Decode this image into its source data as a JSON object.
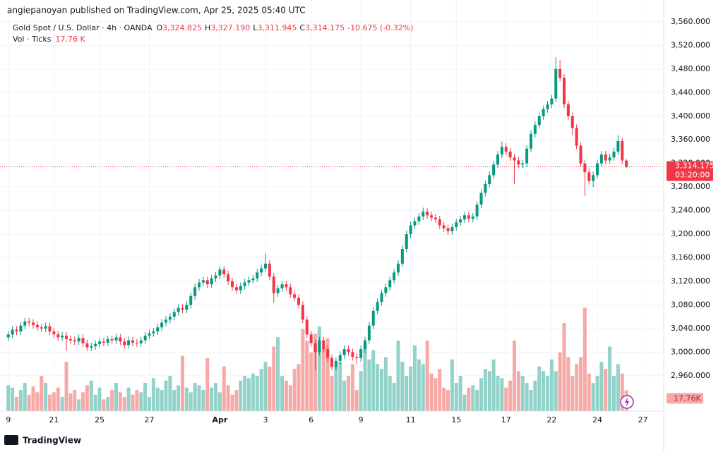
{
  "header": {
    "publisher": "angiepanoyan published on TradingView.com, Apr 25, 2025 05:40 UTC"
  },
  "chart_data": {
    "type": "candlestick",
    "title": "Gold Spot / U.S. Dollar · 4h · OANDA",
    "ohlc_legend": [
      {
        "key": "O",
        "value": "3,324.825"
      },
      {
        "key": "H",
        "value": "3,327.190"
      },
      {
        "key": "L",
        "value": "3,311.945"
      },
      {
        "key": "C",
        "value": "3,314.175"
      }
    ],
    "change": "-10.675 (-0.32%)",
    "volume_title": "Vol · Ticks",
    "volume_legend": "17.76 K",
    "open": [
      3025,
      3030,
      3038,
      3035,
      3045,
      3052,
      3050,
      3046,
      3042,
      3040,
      3044,
      3035,
      3030,
      3025,
      3028,
      3022,
      3020,
      3018,
      3024,
      3015,
      3008,
      3010,
      3014,
      3018,
      3016,
      3022,
      3020,
      3025,
      3018,
      3012,
      3020,
      3016,
      3015,
      3020,
      3028,
      3032,
      3035,
      3042,
      3050,
      3055,
      3060,
      3068,
      3075,
      3072,
      3080,
      3095,
      3110,
      3118,
      3122,
      3115,
      3125,
      3130,
      3140,
      3132,
      3120,
      3110,
      3105,
      3112,
      3118,
      3122,
      3125,
      3135,
      3142,
      3150,
      3128,
      3100,
      3108,
      3115,
      3110,
      3098,
      3092,
      3080,
      3055,
      3030,
      3015,
      3000,
      3020,
      3005,
      2990,
      2975,
      2985,
      2995,
      3005,
      3000,
      2992,
      2990,
      3005,
      3020,
      3045,
      3070,
      3085,
      3100,
      3110,
      3122,
      3135,
      3150,
      3175,
      3200,
      3215,
      3222,
      3230,
      3238,
      3232,
      3228,
      3225,
      3215,
      3210,
      3205,
      3212,
      3220,
      3225,
      3232,
      3226,
      3230,
      3250,
      3270,
      3285,
      3300,
      3318,
      3335,
      3348,
      3340,
      3330,
      3325,
      3318,
      3320,
      3345,
      3370,
      3385,
      3400,
      3412,
      3420,
      3430,
      3480,
      3465,
      3420,
      3400,
      3380,
      3350,
      3320,
      3305,
      3290,
      3300,
      3320,
      3335,
      3325,
      3330,
      3340,
      3358,
      3324.825
    ],
    "high": [
      3036,
      3044,
      3044,
      3051,
      3058,
      3058,
      3056,
      3052,
      3048,
      3050,
      3050,
      3041,
      3036,
      3034,
      3034,
      3028,
      3026,
      3030,
      3030,
      3021,
      3016,
      3020,
      3024,
      3024,
      3028,
      3028,
      3031,
      3031,
      3024,
      3026,
      3026,
      3022,
      3026,
      3034,
      3038,
      3041,
      3048,
      3056,
      3061,
      3066,
      3074,
      3081,
      3081,
      3086,
      3101,
      3116,
      3124,
      3128,
      3128,
      3131,
      3136,
      3146,
      3146,
      3138,
      3126,
      3116,
      3118,
      3124,
      3128,
      3131,
      3141,
      3148,
      3168,
      3156,
      3134,
      3114,
      3121,
      3121,
      3116,
      3104,
      3098,
      3086,
      3061,
      3036,
      3021,
      3026,
      3026,
      3011,
      2996,
      2991,
      3001,
      3011,
      3011,
      3006,
      2998,
      3011,
      3026,
      3051,
      3076,
      3091,
      3106,
      3116,
      3128,
      3141,
      3156,
      3181,
      3206,
      3221,
      3228,
      3236,
      3245,
      3244,
      3238,
      3234,
      3231,
      3221,
      3216,
      3218,
      3226,
      3231,
      3238,
      3238,
      3236,
      3256,
      3276,
      3291,
      3306,
      3324,
      3341,
      3357,
      3354,
      3346,
      3336,
      3331,
      3326,
      3351,
      3376,
      3391,
      3406,
      3418,
      3426,
      3436,
      3500,
      3495,
      3471,
      3426,
      3406,
      3386,
      3356,
      3326,
      3311,
      3306,
      3326,
      3341,
      3341,
      3336,
      3346,
      3368,
      3364,
      3327.19
    ],
    "low": [
      3019,
      3024,
      3029,
      3029,
      3039,
      3044,
      3040,
      3036,
      3034,
      3034,
      3029,
      3024,
      3019,
      3019,
      3002,
      3014,
      3012,
      3012,
      3009,
      3002,
      3002,
      3004,
      3008,
      3010,
      3010,
      3014,
      3014,
      3012,
      3006,
      3006,
      3010,
      3009,
      3009,
      3014,
      3022,
      3026,
      3029,
      3036,
      3044,
      3049,
      3054,
      3062,
      3066,
      3066,
      3074,
      3089,
      3104,
      3112,
      3109,
      3109,
      3119,
      3124,
      3126,
      3114,
      3104,
      3099,
      3099,
      3106,
      3112,
      3116,
      3119,
      3129,
      3136,
      3122,
      3084,
      3094,
      3102,
      3104,
      3092,
      3086,
      3074,
      3049,
      3024,
      3009,
      2970,
      2994,
      2999,
      2984,
      2969,
      2969,
      2979,
      2989,
      2994,
      2986,
      2980,
      2984,
      2999,
      3014,
      3039,
      3064,
      3079,
      3094,
      3104,
      3116,
      3129,
      3144,
      3169,
      3194,
      3209,
      3216,
      3224,
      3226,
      3222,
      3219,
      3209,
      3204,
      3199,
      3199,
      3206,
      3214,
      3219,
      3220,
      3220,
      3224,
      3244,
      3264,
      3279,
      3294,
      3312,
      3329,
      3334,
      3324,
      3285,
      3312,
      3312,
      3314,
      3339,
      3364,
      3379,
      3394,
      3406,
      3414,
      3424,
      3459,
      3414,
      3394,
      3368,
      3344,
      3314,
      3265,
      3284,
      3280,
      3294,
      3314,
      3319,
      3319,
      3324,
      3334,
      3319,
      3311.945
    ],
    "close": [
      3030,
      3038,
      3035,
      3045,
      3052,
      3050,
      3046,
      3042,
      3040,
      3044,
      3035,
      3030,
      3025,
      3028,
      3022,
      3020,
      3018,
      3024,
      3015,
      3008,
      3010,
      3014,
      3018,
      3016,
      3022,
      3020,
      3025,
      3018,
      3012,
      3020,
      3016,
      3015,
      3020,
      3028,
      3032,
      3035,
      3042,
      3050,
      3055,
      3060,
      3068,
      3075,
      3072,
      3080,
      3095,
      3110,
      3118,
      3122,
      3115,
      3125,
      3130,
      3140,
      3132,
      3120,
      3110,
      3105,
      3112,
      3118,
      3122,
      3125,
      3135,
      3142,
      3150,
      3128,
      3100,
      3108,
      3115,
      3110,
      3098,
      3092,
      3080,
      3055,
      3030,
      3015,
      3000,
      3020,
      3005,
      2990,
      2975,
      2985,
      2995,
      3005,
      3000,
      2992,
      2990,
      3005,
      3020,
      3045,
      3070,
      3085,
      3100,
      3110,
      3122,
      3135,
      3150,
      3175,
      3200,
      3215,
      3222,
      3230,
      3238,
      3232,
      3228,
      3225,
      3215,
      3210,
      3205,
      3212,
      3220,
      3225,
      3232,
      3226,
      3230,
      3250,
      3270,
      3285,
      3300,
      3318,
      3335,
      3348,
      3340,
      3330,
      3325,
      3318,
      3320,
      3345,
      3370,
      3385,
      3400,
      3412,
      3420,
      3430,
      3480,
      3465,
      3420,
      3400,
      3380,
      3350,
      3320,
      3305,
      3290,
      3300,
      3320,
      3335,
      3325,
      3330,
      3340,
      3358,
      3325,
      3314.175
    ],
    "volume": [
      22,
      20,
      12,
      18,
      24,
      14,
      21,
      16,
      30,
      24,
      14,
      16,
      20,
      12,
      42,
      15,
      18,
      10,
      16,
      22,
      26,
      14,
      20,
      10,
      12,
      18,
      24,
      16,
      12,
      20,
      14,
      18,
      16,
      24,
      12,
      28,
      20,
      18,
      26,
      30,
      18,
      22,
      47,
      20,
      16,
      24,
      22,
      18,
      45,
      20,
      24,
      16,
      38,
      22,
      14,
      18,
      26,
      30,
      28,
      32,
      30,
      36,
      42,
      38,
      55,
      63,
      30,
      26,
      22,
      36,
      40,
      70,
      60,
      50,
      66,
      72,
      54,
      62,
      30,
      38,
      42,
      26,
      30,
      40,
      18,
      34,
      58,
      44,
      52,
      40,
      36,
      46,
      30,
      24,
      60,
      42,
      30,
      38,
      56,
      44,
      40,
      60,
      32,
      28,
      36,
      20,
      18,
      44,
      24,
      30,
      14,
      20,
      22,
      18,
      28,
      36,
      34,
      44,
      30,
      28,
      20,
      26,
      60,
      34,
      30,
      24,
      18,
      26,
      38,
      34,
      30,
      44,
      34,
      50,
      75,
      46,
      30,
      40,
      46,
      88,
      32,
      24,
      30,
      42,
      36,
      55,
      30,
      40,
      32,
      17.76
    ],
    "xlim": [
      -2,
      158
    ],
    "xticks": [
      {
        "value": 0,
        "label": "9"
      },
      {
        "value": 11,
        "label": "21"
      },
      {
        "value": 22,
        "label": "25"
      },
      {
        "value": 34,
        "label": "27"
      },
      {
        "value": 51,
        "label": "Apr"
      },
      {
        "value": 62,
        "label": "3"
      },
      {
        "value": 73,
        "label": "6"
      },
      {
        "value": 85,
        "label": "9"
      },
      {
        "value": 97,
        "label": "11"
      },
      {
        "value": 108,
        "label": "15"
      },
      {
        "value": 120,
        "label": "17"
      },
      {
        "value": 131,
        "label": "22"
      },
      {
        "value": 142,
        "label": "24"
      },
      {
        "value": 153,
        "label": "27"
      }
    ],
    "ylim": [
      2900,
      3597
    ],
    "yticks": [
      {
        "value": 2960,
        "label": "2,960.000"
      },
      {
        "value": 3000,
        "label": "3,000.000"
      },
      {
        "value": 3040,
        "label": "3,040.000"
      },
      {
        "value": 3080,
        "label": "3,080.000"
      },
      {
        "value": 3120,
        "label": "3,120.000"
      },
      {
        "value": 3160,
        "label": "3,160.000"
      },
      {
        "value": 3200,
        "label": "3,200.000"
      },
      {
        "value": 3240,
        "label": "3,240.000"
      },
      {
        "value": 3280,
        "label": "3,280.000"
      },
      {
        "value": 3320,
        "label": "3,320.000"
      },
      {
        "value": 3360,
        "label": "3,360.000"
      },
      {
        "value": 3400,
        "label": "3,400.000"
      },
      {
        "value": 3440,
        "label": "3,440.000"
      },
      {
        "value": 3480,
        "label": "3,480.000"
      },
      {
        "value": 3520,
        "label": "3,520.000"
      },
      {
        "value": 3560,
        "label": "3,560.000"
      }
    ],
    "volume_ylim": [
      0,
      350
    ],
    "price_label": "3,314.175",
    "countdown": "03:20:00",
    "volume_label": "17.76K",
    "grid": true,
    "up_color": "#089981",
    "down_color": "#f23645",
    "up_volume_color": "#92d2c8",
    "down_volume_color": "#f7a9a7"
  },
  "footer": {
    "brand": "TradingView"
  }
}
